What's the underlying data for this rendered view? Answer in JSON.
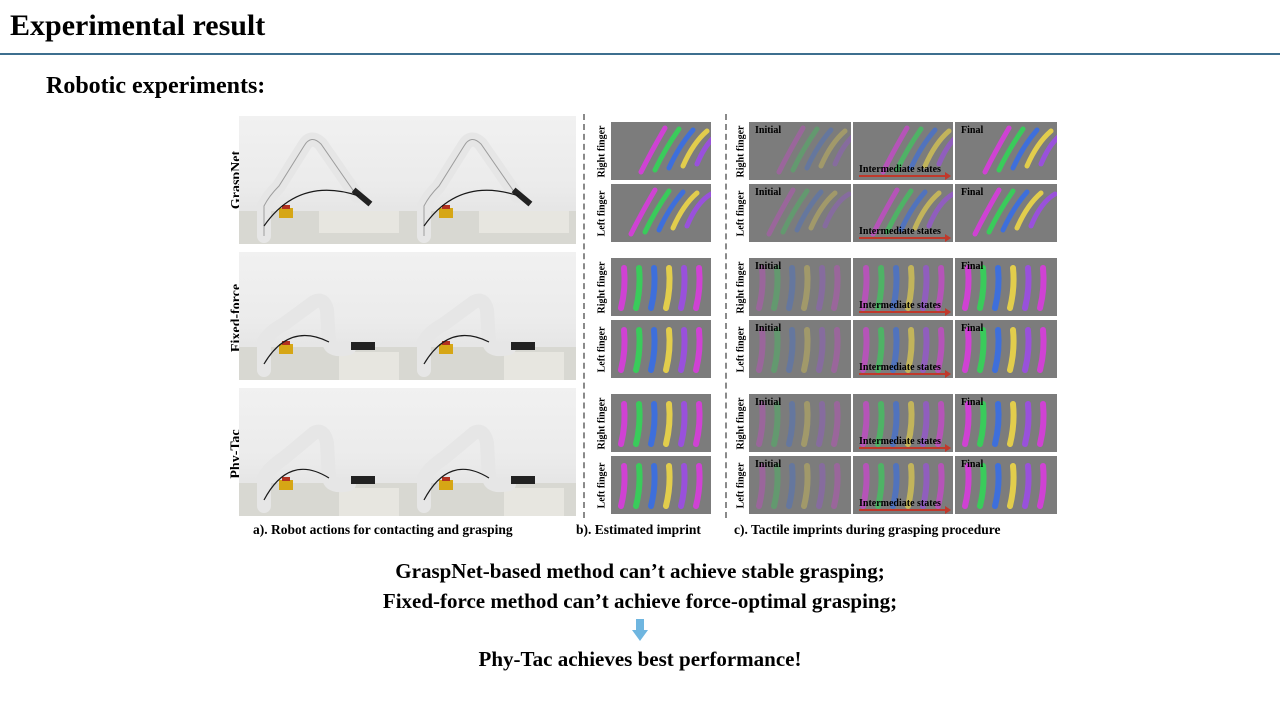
{
  "slide": {
    "title": "Experimental result",
    "section_heading": "Robotic experiments:"
  },
  "figure": {
    "rows": [
      {
        "label": "GraspNet"
      },
      {
        "label": "Fixed-force"
      },
      {
        "label": "Phy-Tac"
      }
    ],
    "finger_labels": {
      "right": "Right finger",
      "left": "Left finger"
    },
    "tile_labels": {
      "initial": "Initial",
      "intermediate": "Intermediate states",
      "final": "Final"
    },
    "captions": {
      "a": "a).  Robot actions for contacting and grasping",
      "b": "b).  Estimated imprint",
      "c": "c).  Tactile imprints during grasping procedure"
    },
    "colors": {
      "tile_bg": "#7c7c7c",
      "arrow": "#c0392b",
      "title_rule": "#3d6f8f"
    }
  },
  "conclusions": {
    "line1": "GraspNet-based method can’t achieve stable grasping;",
    "line2": "Fixed-force method can’t achieve force-optimal grasping;",
    "line3": "Phy-Tac achieves best performance!"
  },
  "icons": {
    "arrow": "down-arrow-icon",
    "arrow_color": "#6fb6e0"
  }
}
